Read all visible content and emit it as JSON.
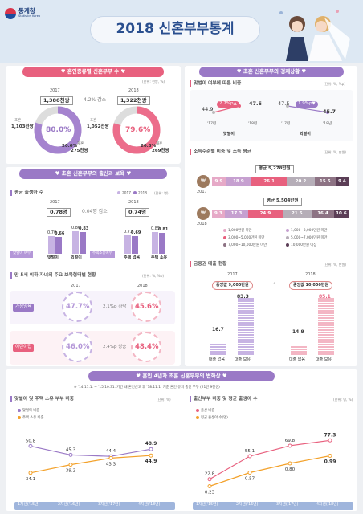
{
  "header": {
    "logo_text": "통계청",
    "logo_sub": "Statistics Korea",
    "title": "2018 신혼부부통계"
  },
  "colors": {
    "purple": "#9a79c6",
    "pink": "#e8607e",
    "light_purple": "#c7b3e3",
    "light_pink": "#f3b6c4"
  },
  "s1": {
    "title": "♥ 혼인종류별 신혼부부 수 ♥",
    "unit": "(단위: 천쌍, %)",
    "y2017": "2017",
    "y2018": "2018",
    "total17": "1,380천쌍",
    "total18": "1,322천쌍",
    "change": "4.2% 감소",
    "first_label": "초혼",
    "first17": "1,103천쌍",
    "first18": "1,052천쌍",
    "re_label": "재혼",
    "re17": "275천쌍",
    "re18": "269천쌍",
    "pct_first17": "80.0%",
    "pct_re17": "20.0%",
    "pct_first18": "79.6%",
    "pct_re18": "20.3%",
    "chart_data": {
      "type": "pie",
      "title": "혼인종류별 신혼부부 수",
      "series": [
        {
          "name": "2017",
          "values": [
            80.0,
            20.0
          ]
        },
        {
          "name": "2018",
          "values": [
            79.6,
            20.3
          ]
        }
      ],
      "categories": [
        "초혼",
        "재혼"
      ]
    }
  },
  "s2": {
    "title": "♥ 초혼 신혼부부의 경제상황 ♥",
    "sub1": "맞벌이 여부에 따른 비중",
    "unit1": "(단위: %, %p)",
    "dual": {
      "from": "44.9",
      "to": "47.5",
      "badge": "2.7%p▲",
      "label": "맞벌이",
      "x1": "'17년",
      "x2": "'18년"
    },
    "single": {
      "from": "47.5",
      "to": "45.7",
      "badge": "1.9%p▼",
      "label": "외벌이",
      "x1": "'17년",
      "x2": "'18년"
    },
    "sub2": "소득수준별 비중 및 소득 평균",
    "unit2": "(단위: %, 만원)",
    "avg17": "평균 5,278만원",
    "avg18": "평균 5,504만원",
    "y2017": "2017",
    "y2018": "2018",
    "bars17": [
      "9.9",
      "18.9",
      "26.1",
      "20.2",
      "15.5",
      "9.4"
    ],
    "bars18": [
      "9.3",
      "17.3",
      "24.9",
      "21.5",
      "16.4",
      "10.6"
    ],
    "legend": [
      "1,000만원 미만",
      "1,000~3,000만원 미만",
      "3,000~5,000만원 미만",
      "5,000~7,000만원 미만",
      "7,000~10,000만원 미만",
      "10,000만원 이상"
    ],
    "income_chart": {
      "type": "bar",
      "categories": [
        "1,000만원 미만",
        "1,000~3,000만원 미만",
        "3,000~5,000만원 미만",
        "5,000~7,000만원 미만",
        "7,000~10,000만원 미만",
        "10,000만원 이상"
      ],
      "series": [
        {
          "name": "2017",
          "values": [
            9.9,
            18.9,
            26.1,
            20.2,
            15.5,
            9.4
          ]
        },
        {
          "name": "2018",
          "values": [
            9.3,
            17.3,
            24.9,
            21.5,
            16.4,
            10.6
          ]
        }
      ]
    },
    "sub3": "금융권 대출 현황",
    "unit3": "(단위: %, 만원)",
    "loan17": {
      "year": "2017",
      "median": "중앙값 9,000만원",
      "no": "16.7",
      "yes": "83.3",
      "no_label": "대출 없음",
      "yes_label": "대출 보유"
    },
    "loan18": {
      "year": "2018",
      "median": "중앙값 10,000만원",
      "no": "14.9",
      "yes": "85.1",
      "no_label": "대출 없음",
      "yes_label": "대출 보유"
    },
    "loan_chart": {
      "type": "bar",
      "categories": [
        "대출 없음",
        "대출 보유"
      ],
      "series": [
        {
          "name": "2017",
          "values": [
            16.7,
            83.3
          ]
        },
        {
          "name": "2018",
          "values": [
            14.9,
            85.1
          ]
        }
      ]
    }
  },
  "s3": {
    "title": "♥ 초혼 신혼부부의 출산과 보육 ♥",
    "sub1": "평균 출생아 수",
    "legend17": "2017",
    "legend18": "2018",
    "unit1": "(단위: 명)",
    "y2017": "2017",
    "y2018": "2018",
    "avg17": "0.78명",
    "avg18": "0.74명",
    "change": "0.04명 감소",
    "label_dual": "맞벌이 여부",
    "label_home": "주택소유여부",
    "cat": [
      "맞벌이",
      "외벌이",
      "주택 없음",
      "주택 소유"
    ],
    "v17": [
      "0.70",
      "0.86",
      "0.73",
      "0.85"
    ],
    "v18": [
      "0.66",
      "0.83",
      "0.69",
      "0.81"
    ],
    "birth_chart": {
      "type": "bar",
      "categories": [
        "맞벌이",
        "외벌이",
        "주택 없음",
        "주택 소유"
      ],
      "series": [
        {
          "name": "2017",
          "values": [
            0.7,
            0.86,
            0.73,
            0.85
          ]
        },
        {
          "name": "2018",
          "values": [
            0.66,
            0.83,
            0.69,
            0.81
          ]
        }
      ]
    },
    "sub2": "만 5세 이하 자녀의 주요 보육형태별 현황",
    "unit2": "(단위: %, %p)",
    "c_y2017": "2017",
    "c_y2018": "2018",
    "home_label": "가정양육",
    "home17": "47.7%",
    "home18": "45.6%",
    "home_change": "2.1%p 하락",
    "daycare_label": "어린이집",
    "daycare17": "46.0%",
    "daycare18": "48.4%",
    "daycare_change": "2.4%p 상승"
  },
  "s4": {
    "title": "♥ 혼인 4년차 초혼 신혼부부의 변화상 ♥",
    "note": "※ '14.11.1. ~ '15.10.31. 기간 내 혼인신고 후 '18.11.1. 기준 혼인 유지 중인 부부 (21만 9천쌍)",
    "sub1": "맞벌이 및 주택 소유 부부 비중",
    "unit1": "(단위: %)",
    "leg1": "맞벌이 비중",
    "leg2": "주택 소유 비중",
    "x": [
      "1차년('15년)",
      "2차년('16년)",
      "3차년('17년)",
      "4차년('18년)"
    ],
    "dual": [
      "50.8",
      "45.3",
      "44.4",
      "48.9"
    ],
    "home": [
      "34.1",
      "39.2",
      "43.3",
      "44.9"
    ],
    "sub2": "출산부부 비중 및 평균 출생아 수",
    "unit2": "(단위: 명, %)",
    "leg3": "출산 비중",
    "leg4": "평균 출생아 수(명)",
    "birth": [
      "22.8",
      "55.1",
      "69.8",
      "77.3"
    ],
    "avg": [
      "0.23",
      "0.57",
      "0.80",
      "0.99"
    ],
    "chart_left": {
      "type": "line",
      "x": [
        "1차년('15년)",
        "2차년('16년)",
        "3차년('17년)",
        "4차년('18년)"
      ],
      "series": [
        {
          "name": "맞벌이 비중",
          "values": [
            50.8,
            45.3,
            44.4,
            48.9
          ]
        },
        {
          "name": "주택 소유 비중",
          "values": [
            34.1,
            39.2,
            43.3,
            44.9
          ]
        }
      ]
    },
    "chart_right": {
      "type": "line",
      "x": [
        "1차년('15년)",
        "2차년('16년)",
        "3차년('17년)",
        "4차년('18년)"
      ],
      "series": [
        {
          "name": "출산 비중",
          "values": [
            22.8,
            55.1,
            69.8,
            77.3
          ]
        },
        {
          "name": "평균 출생아 수(명)",
          "values": [
            0.23,
            0.57,
            0.8,
            0.99
          ]
        }
      ]
    }
  }
}
